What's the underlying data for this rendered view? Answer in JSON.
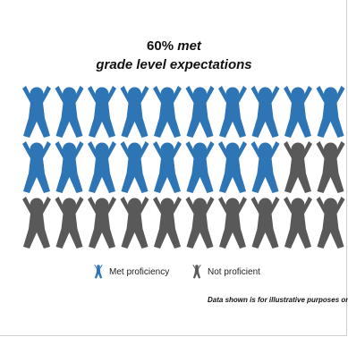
{
  "title": {
    "line1_pct": "60%",
    "line1_word": "met",
    "line2": "grade level expectations"
  },
  "chart_data": {
    "type": "pictograph",
    "total_icons": 30,
    "rows": 3,
    "columns": 10,
    "categories": [
      "Met proficiency",
      "Not proficient"
    ],
    "values": [
      18,
      12
    ],
    "percent_met": 60
  },
  "legend": {
    "met": "Met proficiency",
    "not_met": "Not proficient"
  },
  "colors": {
    "met": "#2e75b6",
    "not_met": "#595959"
  },
  "note": "Data shown is for illustrative purposes only."
}
